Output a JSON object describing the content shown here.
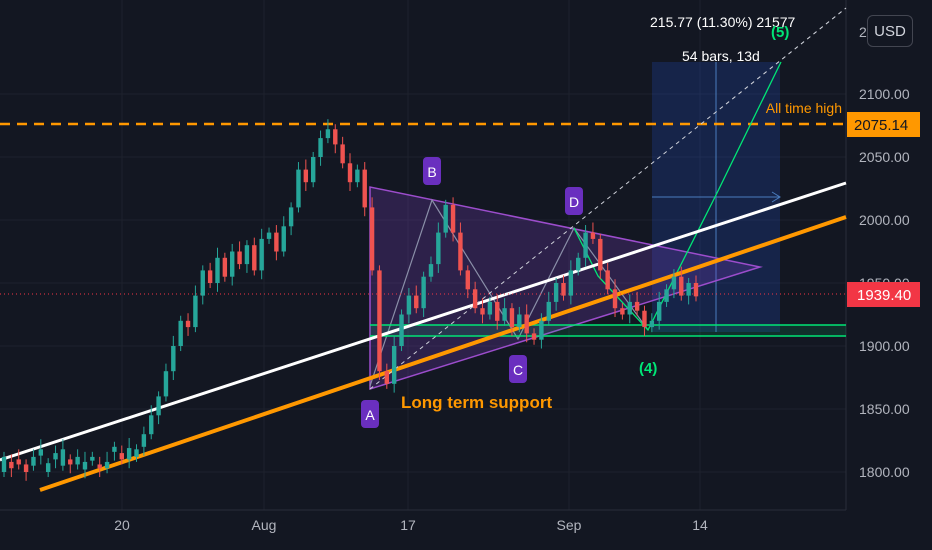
{
  "chart_data": {
    "type": "candlestick",
    "currency_button": "USD",
    "y_axis": {
      "ticks": [
        "2100.00",
        "2050.00",
        "2000.00",
        "1950.00",
        "1900.00",
        "1850.00",
        "1800.00"
      ],
      "top_partial_tick": "21",
      "ylim": [
        1775,
        2185
      ]
    },
    "x_axis": {
      "ticks": [
        "20",
        "Aug",
        "17",
        "Sep",
        "14"
      ]
    },
    "current_price": {
      "label": "1939.40",
      "value": 1939.4,
      "color": "#f23645"
    },
    "all_time_high": {
      "label": "2075.14",
      "value": 2075.14,
      "text": "All time high",
      "color": "#ff9800"
    },
    "measure_box": {
      "line1": "215.77 (11.30%) 21577",
      "line2": "54 bars, 13d"
    },
    "wave_labels": {
      "A": "A",
      "B": "B",
      "C": "C",
      "D": "D",
      "four": "(4)",
      "five": "(5)"
    },
    "support_label": "Long term support",
    "colors": {
      "up": "#26a69a",
      "down": "#ef5350",
      "triangle": "#7b3fc4",
      "support": "#ff9800",
      "white_line": "#ffffff",
      "green": "#00e676",
      "wave_label_bg": "#6a2fbf"
    },
    "candles_close_path": [
      [
        1800,
        1812
      ],
      [
        1808,
        1803
      ],
      [
        1810,
        1806
      ],
      [
        1806,
        1800
      ],
      [
        1805,
        1812
      ],
      [
        1813,
        1818
      ],
      [
        1800,
        1807
      ],
      [
        1810,
        1815
      ],
      [
        1805,
        1818
      ],
      [
        1810,
        1806
      ],
      [
        1806,
        1812
      ],
      [
        1802,
        1808
      ],
      [
        1809,
        1812
      ],
      [
        1806,
        1803
      ],
      [
        1803,
        1808
      ],
      [
        1816,
        1820
      ],
      [
        1815,
        1810
      ],
      [
        1810,
        1819
      ],
      [
        1812,
        1818
      ],
      [
        1820,
        1830
      ],
      [
        1830,
        1845
      ],
      [
        1845,
        1860
      ],
      [
        1860,
        1880
      ],
      [
        1880,
        1900
      ],
      [
        1900,
        1920
      ],
      [
        1920,
        1915
      ],
      [
        1915,
        1940
      ],
      [
        1940,
        1960
      ],
      [
        1960,
        1950
      ],
      [
        1950,
        1970
      ],
      [
        1970,
        1955
      ],
      [
        1955,
        1975
      ],
      [
        1975,
        1965
      ],
      [
        1965,
        1980
      ],
      [
        1980,
        1960
      ],
      [
        1960,
        1985
      ],
      [
        1985,
        1990
      ],
      [
        1990,
        1975
      ],
      [
        1975,
        1995
      ],
      [
        1995,
        2010
      ],
      [
        2010,
        2040
      ],
      [
        2040,
        2030
      ],
      [
        2030,
        2050
      ],
      [
        2050,
        2065
      ],
      [
        2065,
        2072
      ],
      [
        2072,
        2060
      ],
      [
        2060,
        2045
      ],
      [
        2045,
        2030
      ],
      [
        2030,
        2040
      ],
      [
        2040,
        2010
      ],
      [
        2010,
        1960
      ],
      [
        1960,
        1880
      ],
      [
        1880,
        1870
      ],
      [
        1870,
        1900
      ],
      [
        1900,
        1925
      ],
      [
        1925,
        1940
      ],
      [
        1940,
        1930
      ],
      [
        1930,
        1955
      ],
      [
        1955,
        1965
      ],
      [
        1965,
        1990
      ],
      [
        1990,
        2012
      ],
      [
        2012,
        1990
      ],
      [
        1990,
        1960
      ],
      [
        1960,
        1945
      ],
      [
        1945,
        1930
      ],
      [
        1930,
        1925
      ],
      [
        1925,
        1935
      ],
      [
        1935,
        1920
      ],
      [
        1920,
        1930
      ],
      [
        1930,
        1915
      ],
      [
        1915,
        1925
      ],
      [
        1925,
        1910
      ],
      [
        1910,
        1905
      ],
      [
        1905,
        1920
      ],
      [
        1920,
        1935
      ],
      [
        1935,
        1950
      ],
      [
        1950,
        1940
      ],
      [
        1940,
        1960
      ],
      [
        1960,
        1970
      ],
      [
        1970,
        1990
      ],
      [
        1990,
        1985
      ],
      [
        1985,
        1960
      ],
      [
        1960,
        1945
      ],
      [
        1945,
        1930
      ],
      [
        1930,
        1925
      ],
      [
        1925,
        1935
      ],
      [
        1935,
        1928
      ],
      [
        1928,
        1915
      ],
      [
        1915,
        1920
      ],
      [
        1920,
        1935
      ],
      [
        1935,
        1945
      ],
      [
        1945,
        1955
      ],
      [
        1955,
        1940
      ],
      [
        1940,
        1950
      ],
      [
        1950,
        1939.4
      ]
    ]
  }
}
